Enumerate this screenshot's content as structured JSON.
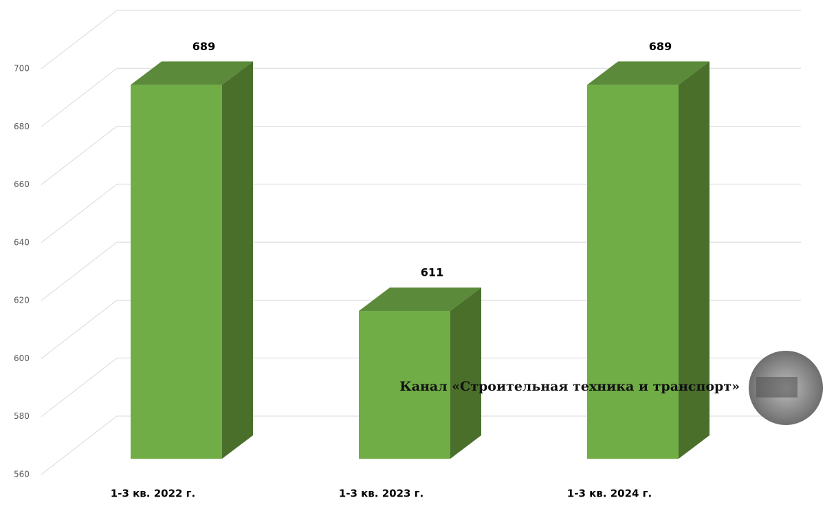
{
  "chart_data": {
    "type": "bar3d",
    "categories": [
      "1-3 кв. 2022 г.",
      "1-3 кв. 2023 г.",
      "1-3 кв. 2024 г."
    ],
    "values": [
      689,
      611,
      689
    ],
    "color": "#70ad47",
    "ylim": [
      560,
      700
    ],
    "yticks": [
      560,
      580,
      600,
      620,
      640,
      660,
      680,
      700
    ],
    "grid": true,
    "watermark": "Канал «Строительная техника и транспорт»"
  }
}
